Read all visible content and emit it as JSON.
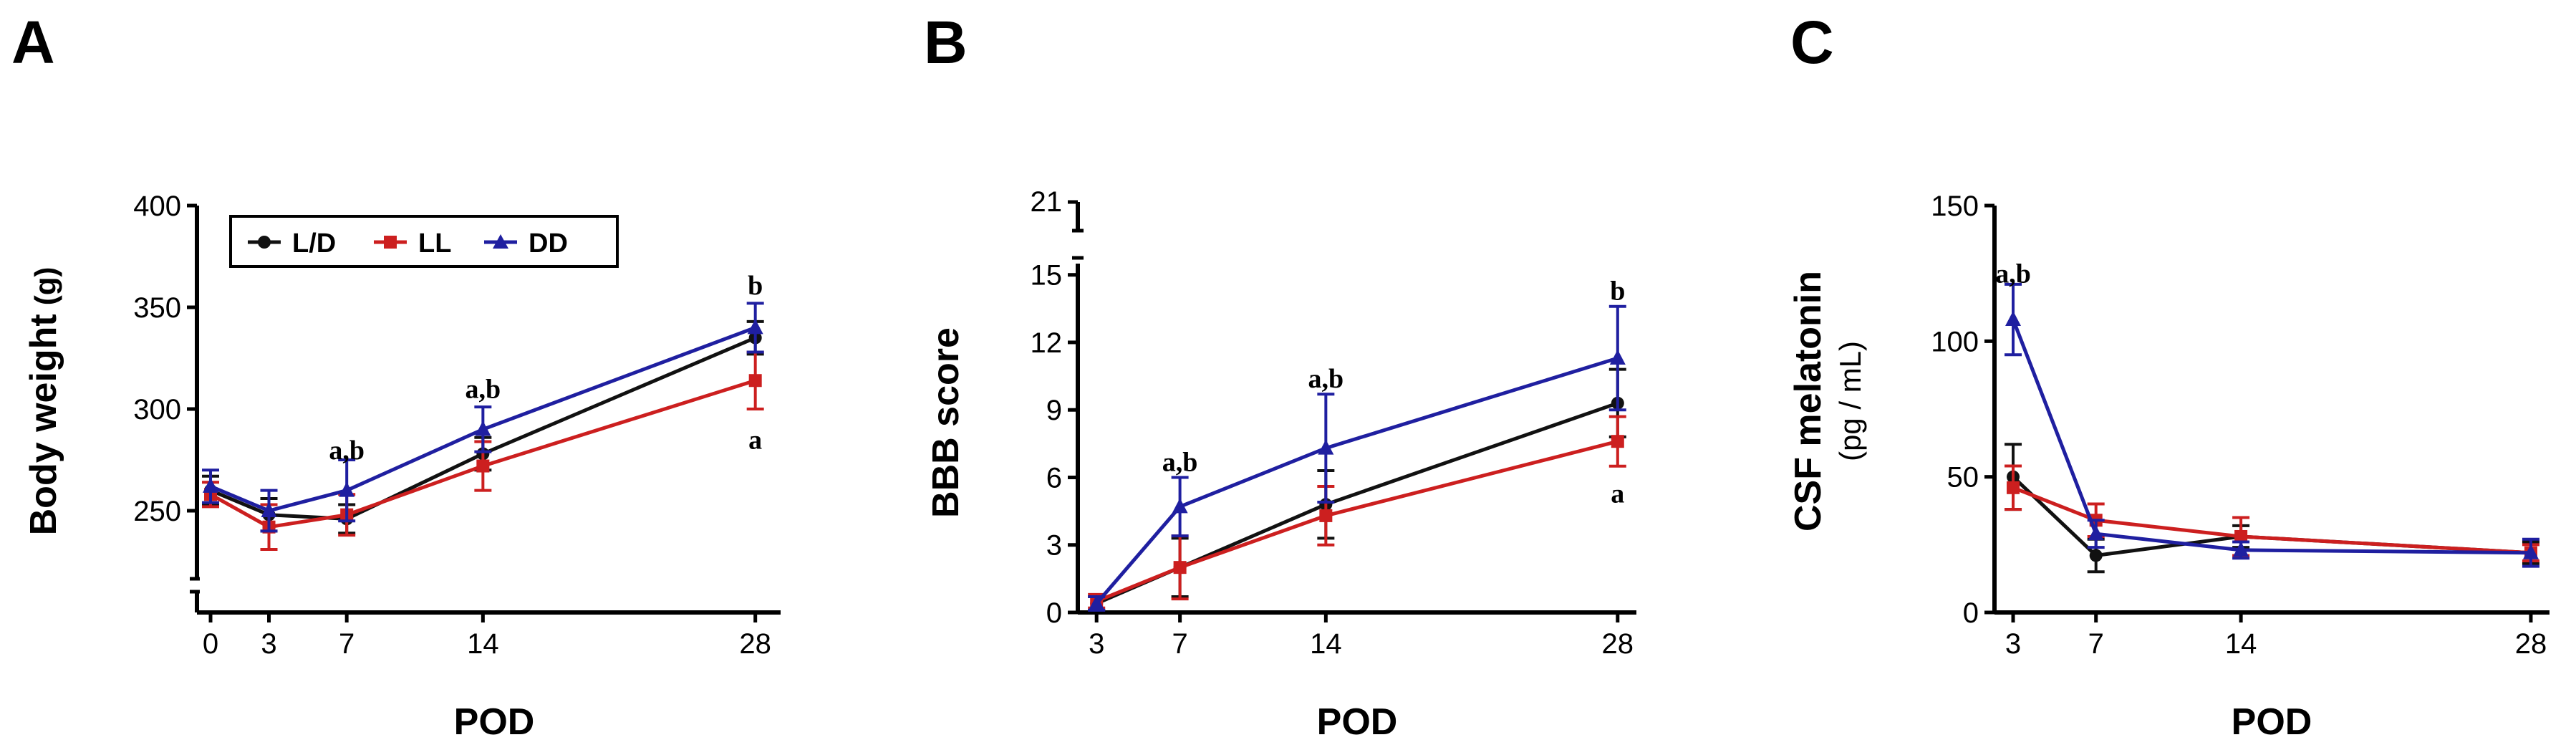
{
  "colors": {
    "L/D": "#111111",
    "LL": "#cc1f1f",
    "DD": "#1f1fa0"
  },
  "legend": [
    {
      "name": "L/D",
      "marker": "circle"
    },
    {
      "name": "LL",
      "marker": "square"
    },
    {
      "name": "DD",
      "marker": "triangle"
    }
  ],
  "chart_data": [
    {
      "panel": "A",
      "type": "line",
      "xlabel": "POD",
      "ylabel": "Body weight",
      "ylabel_unit": "(g)",
      "x": [
        0,
        3,
        7,
        14,
        28
      ],
      "xlim": [
        -0.7,
        29.3
      ],
      "ylim": [
        200,
        400
      ],
      "yticks": [
        250,
        300,
        350,
        400
      ],
      "xticks": [
        0,
        3,
        7,
        14,
        28
      ],
      "axis_break": true,
      "legend": "top-left",
      "series": [
        {
          "name": "L/D",
          "values": [
            260,
            248,
            246,
            278,
            335
          ],
          "err": [
            7,
            8,
            7,
            8,
            8
          ]
        },
        {
          "name": "LL",
          "values": [
            258,
            242,
            248,
            272,
            314
          ],
          "err": [
            6,
            11,
            10,
            12,
            14
          ]
        },
        {
          "name": "DD",
          "values": [
            262,
            250,
            260,
            290,
            340
          ],
          "err": [
            8,
            10,
            15,
            11,
            12
          ]
        }
      ],
      "annotations": [
        {
          "x": 7,
          "y": 280,
          "text": "a,b"
        },
        {
          "x": 14,
          "y": 310,
          "text": "a,b"
        },
        {
          "x": 28,
          "y": 361,
          "text": "b"
        },
        {
          "x": 28,
          "y": 285,
          "text": "a"
        }
      ]
    },
    {
      "panel": "B",
      "type": "line",
      "xlabel": "POD",
      "ylabel": "BBB score",
      "x": [
        3,
        7,
        14,
        28
      ],
      "xlim": [
        2.1,
        28.9
      ],
      "ylim": [
        0,
        15.5
      ],
      "yticks": [
        0,
        3,
        6,
        9,
        12,
        15
      ],
      "top_tick": 21,
      "xticks": [
        3,
        7,
        14,
        28
      ],
      "series": [
        {
          "name": "L/D",
          "values": [
            0.4,
            2.0,
            4.8,
            9.3
          ],
          "err": [
            0.3,
            1.3,
            1.5,
            1.5
          ]
        },
        {
          "name": "LL",
          "values": [
            0.5,
            2.0,
            4.3,
            7.6
          ],
          "err": [
            0.3,
            1.4,
            1.3,
            1.1
          ]
        },
        {
          "name": "DD",
          "values": [
            0.4,
            4.7,
            7.3,
            11.3
          ],
          "err": [
            0.3,
            1.3,
            2.4,
            2.3
          ]
        }
      ],
      "annotations": [
        {
          "x": 7,
          "y": 6.7,
          "text": "a,b"
        },
        {
          "x": 14,
          "y": 10.4,
          "text": "a,b"
        },
        {
          "x": 28,
          "y": 14.3,
          "text": "b"
        },
        {
          "x": 28,
          "y": 5.3,
          "text": "a"
        }
      ]
    },
    {
      "panel": "C",
      "type": "line",
      "xlabel": "POD",
      "ylabel": "CSF melatonin",
      "ylabel_unit": "(pg / mL)",
      "x": [
        3,
        7,
        14,
        28
      ],
      "xlim": [
        2.1,
        28.9
      ],
      "ylim": [
        0,
        150
      ],
      "yticks": [
        0,
        50,
        100,
        150
      ],
      "xticks": [
        3,
        7,
        14,
        28
      ],
      "series": [
        {
          "name": "L/D",
          "values": [
            50,
            21,
            28,
            22
          ],
          "err": [
            12,
            6,
            4,
            4
          ]
        },
        {
          "name": "LL",
          "values": [
            46,
            34,
            28,
            22
          ],
          "err": [
            8,
            6,
            7,
            3
          ]
        },
        {
          "name": "DD",
          "values": [
            108,
            29,
            23,
            22
          ],
          "err": [
            13,
            5,
            3,
            5
          ]
        }
      ],
      "annotations": [
        {
          "x": 3,
          "y": 125,
          "text": "a,b"
        }
      ]
    }
  ]
}
